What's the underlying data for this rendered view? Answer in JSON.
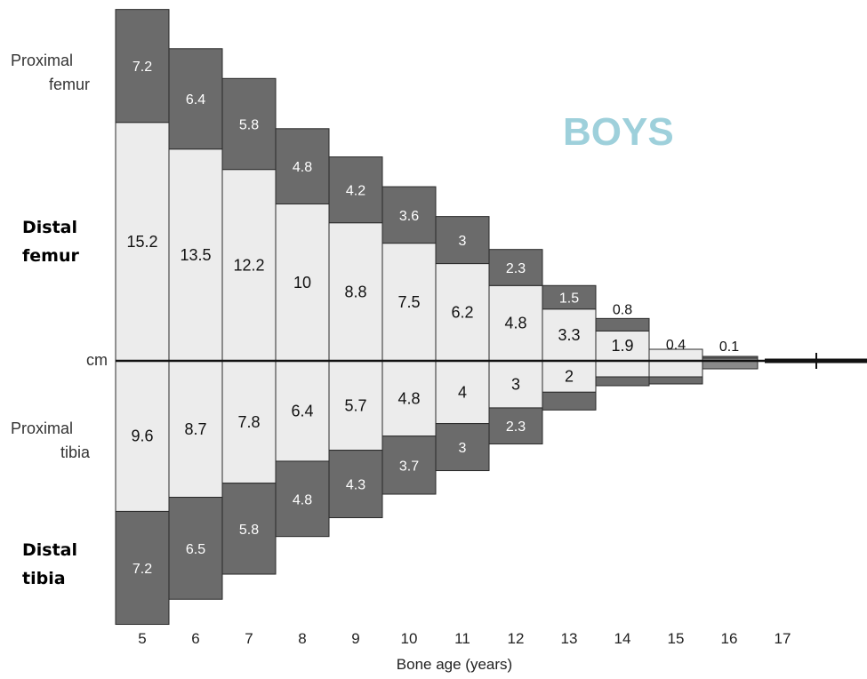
{
  "colors": {
    "dark_segment": "#6b6b6b",
    "light_segment": "#ececec",
    "boys_label": "#9ed0db",
    "axis": "#111111"
  },
  "labels": {
    "proximal_femur": [
      "Proximal",
      "femur"
    ],
    "distal_femur": [
      "Distal",
      "femur"
    ],
    "unit": "cm",
    "proximal_tibia": [
      "Proximal",
      "tibia"
    ],
    "distal_tibia": [
      "Distal",
      "tibia"
    ],
    "title": "BOYS",
    "x_axis": "Bone age (years)"
  },
  "chart_data": {
    "type": "bar",
    "title": "BOYS",
    "xlabel": "Bone age (years)",
    "ylabel": "cm",
    "categories": [
      "5",
      "6",
      "7",
      "8",
      "9",
      "10",
      "11",
      "12",
      "13",
      "14",
      "15",
      "16",
      "17"
    ],
    "series": [
      {
        "name": "Proximal femur",
        "values": [
          7.2,
          6.4,
          5.8,
          4.8,
          4.2,
          3.6,
          3,
          2.3,
          1.5,
          0.8,
          0.4,
          0.1,
          null
        ]
      },
      {
        "name": "Distal femur",
        "values": [
          15.2,
          13.5,
          12.2,
          10,
          8.8,
          7.5,
          6.2,
          4.8,
          3.3,
          1.9,
          null,
          null,
          null
        ]
      },
      {
        "name": "Proximal tibia",
        "values": [
          9.6,
          8.7,
          7.8,
          6.4,
          5.7,
          4.8,
          4,
          3,
          2,
          null,
          null,
          null,
          null
        ]
      },
      {
        "name": "Distal tibia",
        "values": [
          7.2,
          6.5,
          5.8,
          4.8,
          4.3,
          3.7,
          3,
          2.3,
          null,
          null,
          null,
          null,
          null
        ]
      }
    ],
    "ylim": [
      -17,
      22.4
    ],
    "grid": false,
    "legend": "none"
  }
}
